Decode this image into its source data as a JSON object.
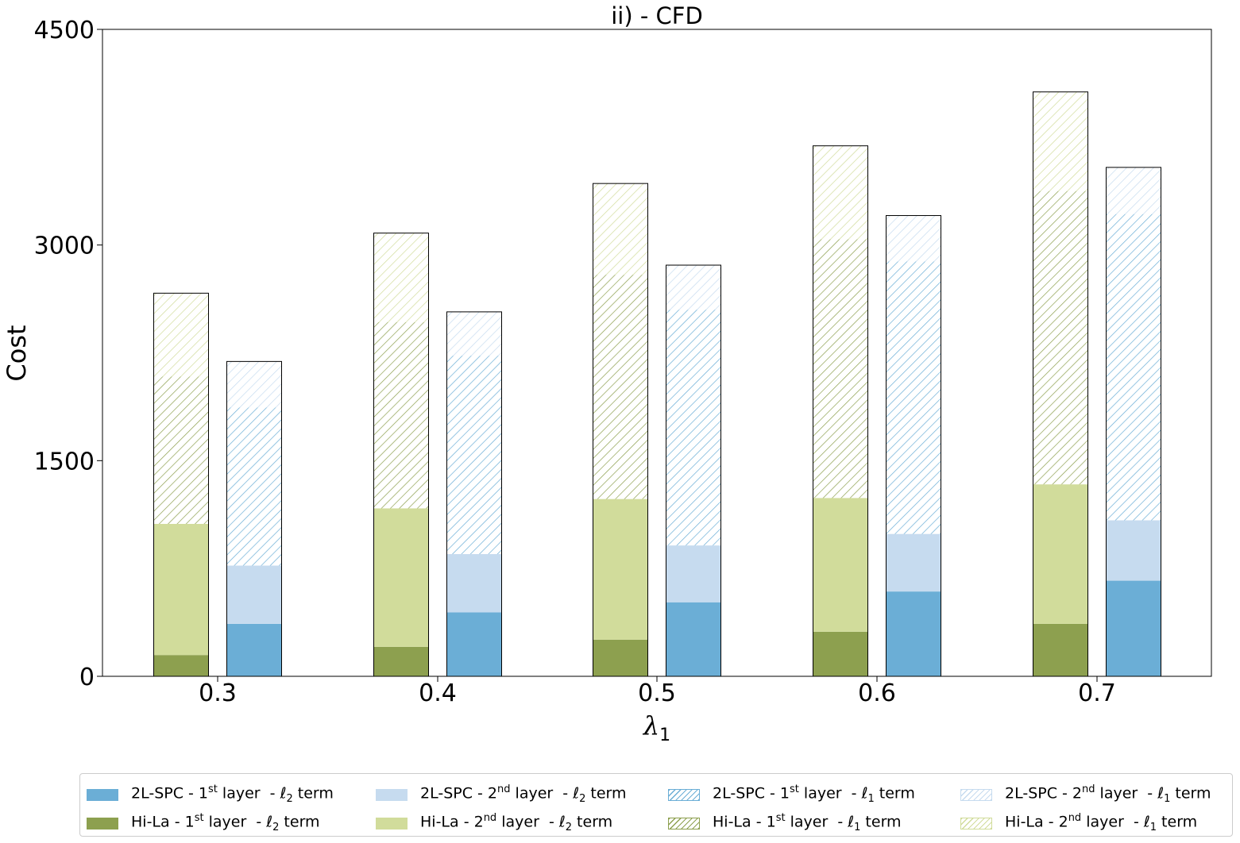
{
  "chart_data": {
    "type": "bar",
    "title": "ii) - CFD",
    "xlabel": "λ1",
    "ylabel": "Cost",
    "categories": [
      "0.3",
      "0.4",
      "0.5",
      "0.6",
      "0.7"
    ],
    "ylim": [
      0,
      4500
    ],
    "yticks": [
      "0",
      "1500",
      "3000",
      "4500"
    ],
    "grid": false,
    "legend_placement": "bottom",
    "stacked": true,
    "groups": [
      {
        "name": "Hi-La",
        "segments": [
          {
            "label": "Hi-La - 1st layer - ℓ2 term",
            "values": [
              148,
              205,
              255,
              310,
              365
            ]
          },
          {
            "label": "Hi-La - 2nd layer - ℓ2 term",
            "values": [
              912,
              963,
              978,
              930,
              970
            ]
          },
          {
            "label": "Hi-La - 1st layer - ℓ1 term",
            "values": [
              1025,
              1295,
              1560,
              1800,
              2040
            ]
          },
          {
            "label": "Hi-La - 2nd layer - ℓ1 term",
            "values": [
              580,
              620,
              635,
              650,
              690
            ]
          }
        ]
      },
      {
        "name": "2L-SPC",
        "segments": [
          {
            "label": "2L-SPC - 1st layer - ℓ2 term",
            "values": [
              365,
              445,
              515,
              590,
              665
            ]
          },
          {
            "label": "2L-SPC - 2nd layer - ℓ2 term",
            "values": [
              405,
              405,
              395,
              400,
              420
            ]
          },
          {
            "label": "2L-SPC - 1st layer - ℓ1 term",
            "values": [
              1100,
              1380,
              1640,
              1895,
              2130
            ]
          },
          {
            "label": "2L-SPC - 2nd layer - ℓ1 term",
            "values": [
              320,
              305,
              310,
              320,
              325
            ]
          }
        ]
      }
    ],
    "colors": {
      "spc_l1": "#6baed6",
      "spc_l2": "#c6dbef",
      "hila_l1": "#8da04f",
      "hila_l2": "#d1dc9b",
      "spc_hatch_l1": "#6baed6",
      "spc_hatch_l2": "#c6dbef",
      "hila_hatch_l1": "#8da04f",
      "hila_hatch_l2": "#d1dc9b"
    }
  },
  "legend": {
    "items": [
      {
        "pre": "2L-SPC - 1",
        "sup": "st",
        "mid": " layer  - ",
        "sym": "ℓ",
        "sub": "2",
        "post": " term",
        "swatch": "spc-solid-1"
      },
      {
        "pre": "2L-SPC - 2",
        "sup": "nd",
        "mid": " layer  - ",
        "sym": "ℓ",
        "sub": "2",
        "post": " term",
        "swatch": "spc-solid-2"
      },
      {
        "pre": "2L-SPC - 1",
        "sup": "st",
        "mid": " layer  - ",
        "sym": "ℓ",
        "sub": "1",
        "post": " term",
        "swatch": "spc-hatch-1"
      },
      {
        "pre": "2L-SPC - 2",
        "sup": "nd",
        "mid": " layer  - ",
        "sym": "ℓ",
        "sub": "1",
        "post": " term",
        "swatch": "spc-hatch-2"
      },
      {
        "pre": "Hi-La - 1",
        "sup": "st",
        "mid": " layer  - ",
        "sym": "ℓ",
        "sub": "2",
        "post": " term",
        "swatch": "hila-solid-1"
      },
      {
        "pre": "Hi-La - 2",
        "sup": "nd",
        "mid": " layer  - ",
        "sym": "ℓ",
        "sub": "2",
        "post": " term",
        "swatch": "hila-solid-2"
      },
      {
        "pre": "Hi-La - 1",
        "sup": "st",
        "mid": " layer  - ",
        "sym": "ℓ",
        "sub": "1",
        "post": " term",
        "swatch": "hila-hatch-1"
      },
      {
        "pre": "Hi-La - 2",
        "sup": "nd",
        "mid": " layer  - ",
        "sym": "ℓ",
        "sub": "1",
        "post": " term",
        "swatch": "hila-hatch-2"
      }
    ]
  }
}
